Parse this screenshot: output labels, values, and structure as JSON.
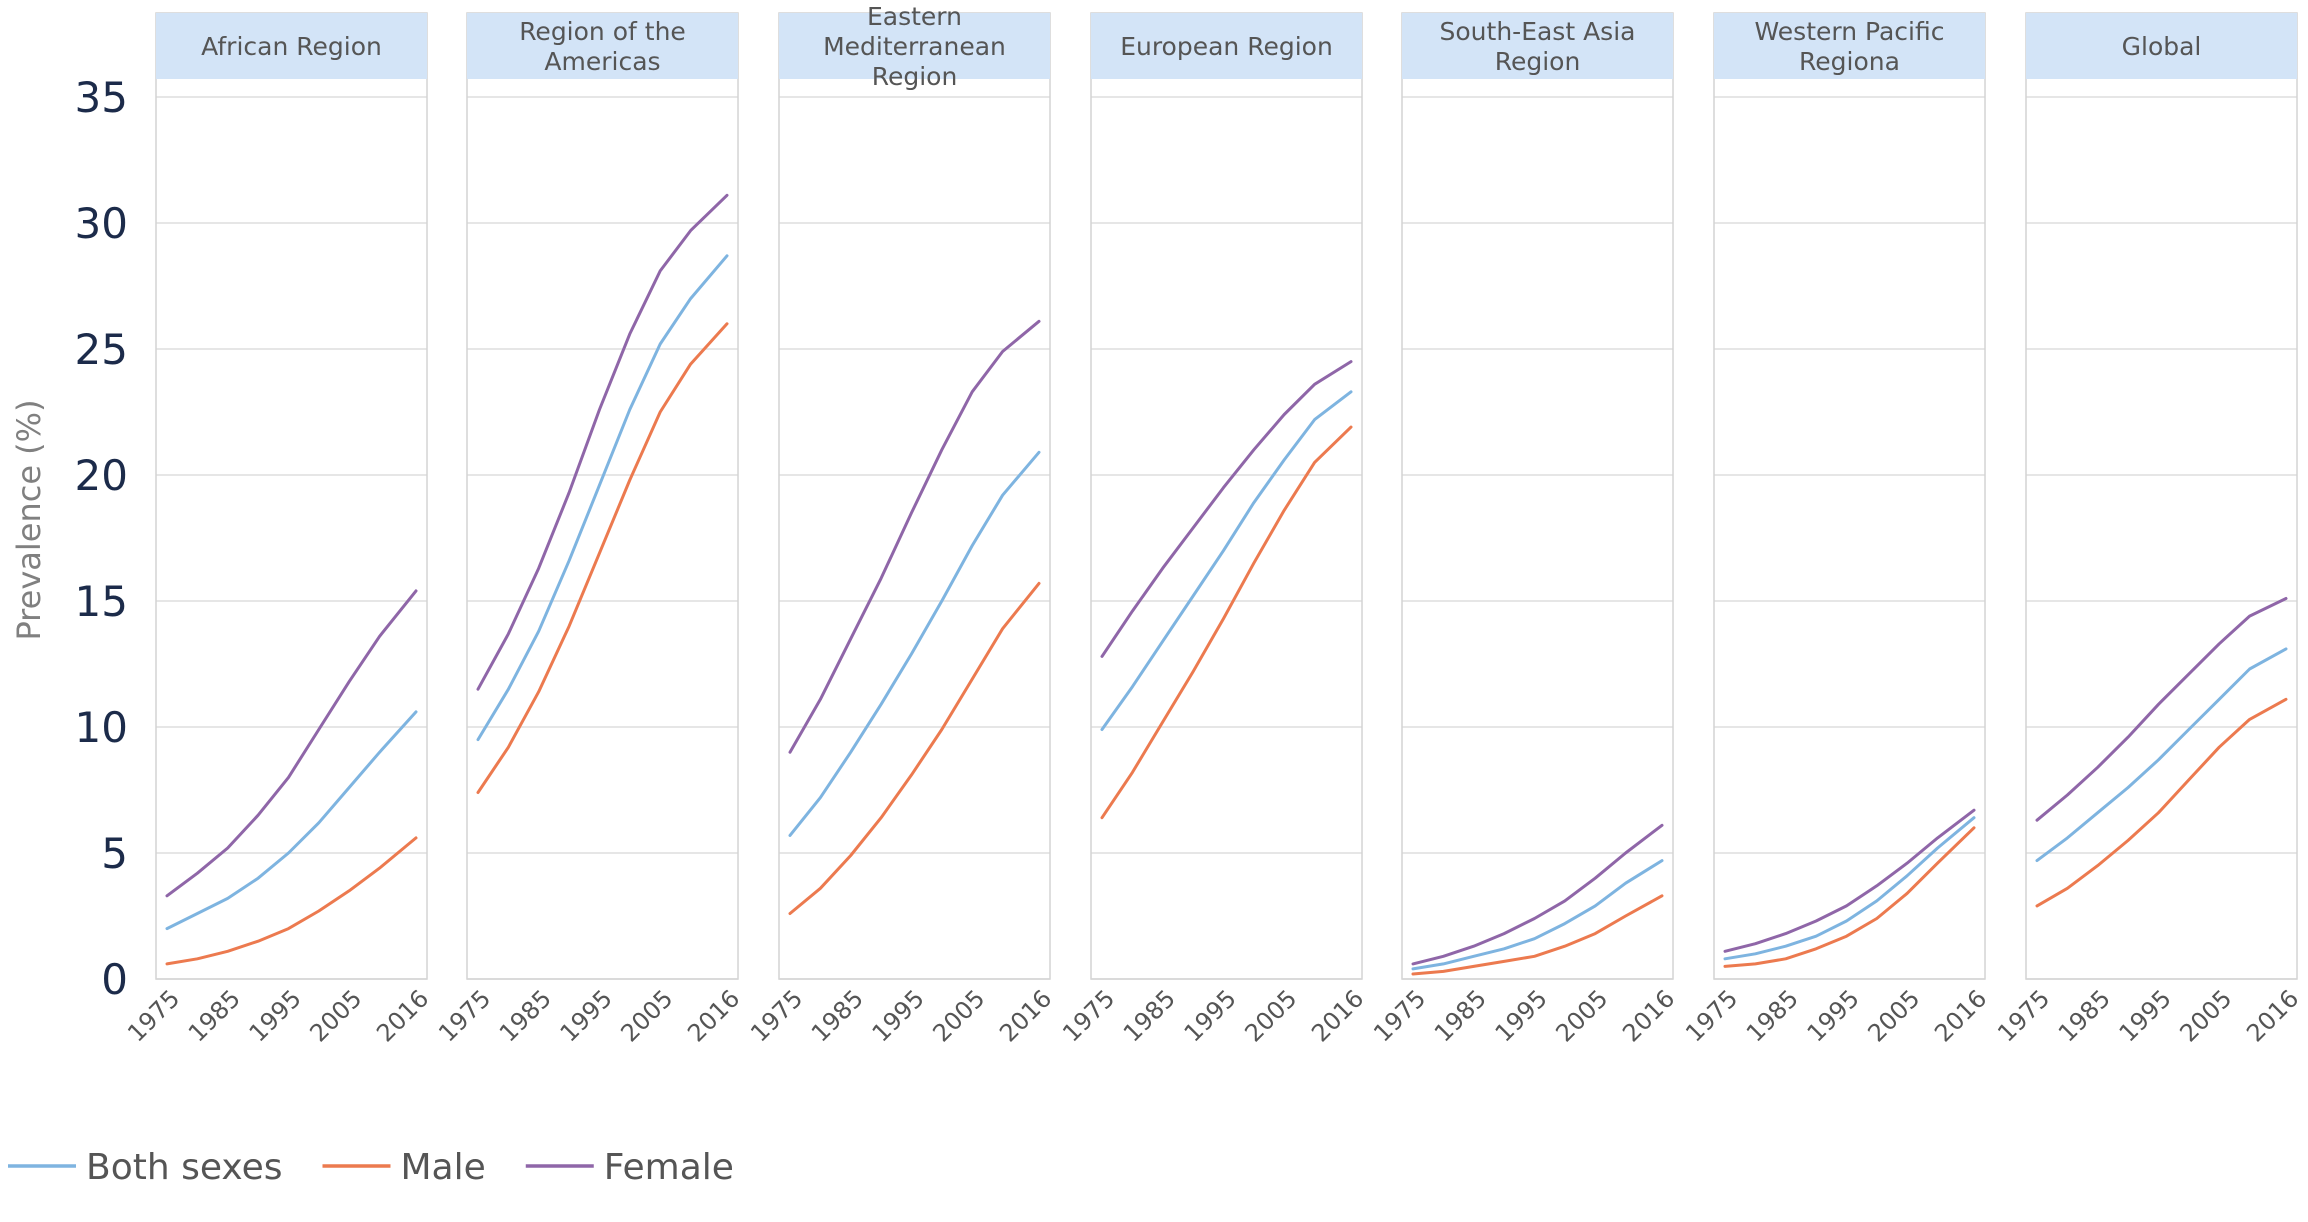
{
  "chart_data": {
    "type": "line",
    "ylabel": "Prevalence (%)",
    "xlabel": "",
    "ylim": [
      0,
      35
    ],
    "yticks": [
      0,
      5,
      10,
      15,
      20,
      25,
      30,
      35
    ],
    "xticks": [
      "1975",
      "1985",
      "1995",
      "2005",
      "2016"
    ],
    "x": [
      1975,
      1980,
      1985,
      1990,
      1995,
      2000,
      2005,
      2010,
      2016
    ],
    "grid": true,
    "legend_position": "bottom-left",
    "series_styles": [
      {
        "name": "Both sexes",
        "color": "#7eb4e0"
      },
      {
        "name": "Male",
        "color": "#ec7a4f"
      },
      {
        "name": "Female",
        "color": "#8f66a8"
      }
    ],
    "panels": [
      {
        "title": "African Region",
        "series": [
          {
            "name": "Both sexes",
            "values": [
              2.0,
              2.6,
              3.2,
              4.0,
              5.0,
              6.2,
              7.6,
              9.0,
              10.6
            ]
          },
          {
            "name": "Male",
            "values": [
              0.6,
              0.8,
              1.1,
              1.5,
              2.0,
              2.7,
              3.5,
              4.4,
              5.6
            ]
          },
          {
            "name": "Female",
            "values": [
              3.3,
              4.2,
              5.2,
              6.5,
              8.0,
              9.9,
              11.8,
              13.6,
              15.4
            ]
          }
        ]
      },
      {
        "title": "Region of the Americas",
        "series": [
          {
            "name": "Both sexes",
            "values": [
              9.5,
              11.5,
              13.8,
              16.6,
              19.6,
              22.6,
              25.2,
              27.0,
              28.7
            ]
          },
          {
            "name": "Male",
            "values": [
              7.4,
              9.2,
              11.4,
              14.0,
              16.9,
              19.8,
              22.5,
              24.4,
              26.0
            ]
          },
          {
            "name": "Female",
            "values": [
              11.5,
              13.7,
              16.3,
              19.3,
              22.6,
              25.6,
              28.1,
              29.7,
              31.1
            ]
          }
        ]
      },
      {
        "title": "Eastern Mediterranean Region",
        "series": [
          {
            "name": "Both sexes",
            "values": [
              5.7,
              7.2,
              9.0,
              10.9,
              12.9,
              15.0,
              17.2,
              19.2,
              20.9
            ]
          },
          {
            "name": "Male",
            "values": [
              2.6,
              3.6,
              4.9,
              6.4,
              8.1,
              9.9,
              11.9,
              13.9,
              15.7
            ]
          },
          {
            "name": "Female",
            "values": [
              9.0,
              11.1,
              13.5,
              15.9,
              18.5,
              21.0,
              23.3,
              24.9,
              26.1
            ]
          }
        ]
      },
      {
        "title": "European Region",
        "series": [
          {
            "name": "Both sexes",
            "values": [
              9.9,
              11.6,
              13.4,
              15.2,
              17.0,
              18.9,
              20.6,
              22.2,
              23.3
            ]
          },
          {
            "name": "Male",
            "values": [
              6.4,
              8.2,
              10.2,
              12.2,
              14.3,
              16.5,
              18.6,
              20.5,
              21.9
            ]
          },
          {
            "name": "Female",
            "values": [
              12.8,
              14.6,
              16.3,
              17.9,
              19.5,
              21.0,
              22.4,
              23.6,
              24.5
            ]
          }
        ]
      },
      {
        "title": "South-East Asia Region",
        "series": [
          {
            "name": "Both sexes",
            "values": [
              0.4,
              0.6,
              0.9,
              1.2,
              1.6,
              2.2,
              2.9,
              3.8,
              4.7
            ]
          },
          {
            "name": "Male",
            "values": [
              0.2,
              0.3,
              0.5,
              0.7,
              0.9,
              1.3,
              1.8,
              2.5,
              3.3
            ]
          },
          {
            "name": "Female",
            "values": [
              0.6,
              0.9,
              1.3,
              1.8,
              2.4,
              3.1,
              4.0,
              5.0,
              6.1
            ]
          }
        ]
      },
      {
        "title": "Western Pacific Regiona",
        "series": [
          {
            "name": "Both sexes",
            "values": [
              0.8,
              1.0,
              1.3,
              1.7,
              2.3,
              3.1,
              4.1,
              5.2,
              6.4
            ]
          },
          {
            "name": "Male",
            "values": [
              0.5,
              0.6,
              0.8,
              1.2,
              1.7,
              2.4,
              3.4,
              4.6,
              6.0
            ]
          },
          {
            "name": "Female",
            "values": [
              1.1,
              1.4,
              1.8,
              2.3,
              2.9,
              3.7,
              4.6,
              5.6,
              6.7
            ]
          }
        ]
      },
      {
        "title": "Global",
        "series": [
          {
            "name": "Both sexes",
            "values": [
              4.7,
              5.6,
              6.6,
              7.6,
              8.7,
              9.9,
              11.1,
              12.3,
              13.1
            ]
          },
          {
            "name": "Male",
            "values": [
              2.9,
              3.6,
              4.5,
              5.5,
              6.6,
              7.9,
              9.2,
              10.3,
              11.1
            ]
          },
          {
            "name": "Female",
            "values": [
              6.3,
              7.3,
              8.4,
              9.6,
              10.9,
              12.1,
              13.3,
              14.4,
              15.1
            ]
          }
        ]
      }
    ]
  }
}
